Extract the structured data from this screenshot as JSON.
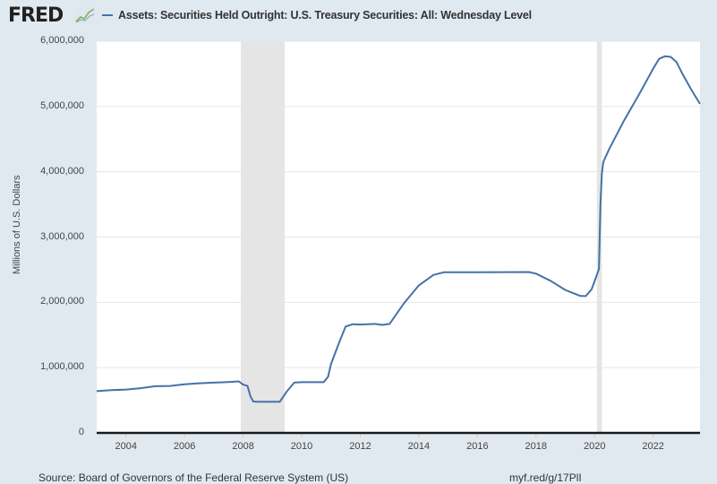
{
  "header": {
    "logo_text": "FRED",
    "logo_icon": "line-chart-icon",
    "legend_label": "Assets: Securities Held Outright: U.S. Treasury Securities: All: Wednesday Level",
    "legend_color": "#4572a7"
  },
  "axes": {
    "ylabel": "Millions of U.S. Dollars",
    "yticks": [
      "0",
      "1,000,000",
      "2,000,000",
      "3,000,000",
      "4,000,000",
      "5,000,000",
      "6,000,000"
    ],
    "xticks": [
      "2004",
      "2006",
      "2008",
      "2010",
      "2012",
      "2014",
      "2016",
      "2018",
      "2020",
      "2022"
    ]
  },
  "footer": {
    "source": "Source: Board of Governors of the Federal Reserve System (US)",
    "link": "myf.red/g/17PlI"
  },
  "colors": {
    "background": "#e1e9f0",
    "plot_bg": "#ffffff",
    "grid": "#e6e6e6",
    "recession": "#e5e5e5",
    "line": "#4572a7",
    "axis": "#1a1a1a"
  },
  "chart_data": {
    "type": "line",
    "title": "Assets: Securities Held Outright: U.S. Treasury Securities: All: Wednesday Level",
    "xlabel": "",
    "ylabel": "Millions of U.S. Dollars",
    "xlim": [
      2003.0,
      2023.6
    ],
    "ylim": [
      0,
      6000000
    ],
    "grid": true,
    "legend_position": "top",
    "recessions": [
      [
        2007.92,
        2009.42
      ],
      [
        2020.08,
        2020.25
      ]
    ],
    "series": [
      {
        "name": "Assets: Securities Held Outright: U.S. Treasury Securities: All: Wednesday Level",
        "x": [
          2003.0,
          2003.5,
          2004.0,
          2004.5,
          2005.0,
          2005.5,
          2006.0,
          2006.5,
          2007.0,
          2007.5,
          2007.85,
          2008.0,
          2008.15,
          2008.25,
          2008.35,
          2008.5,
          2008.75,
          2009.0,
          2009.25,
          2009.5,
          2009.75,
          2010.0,
          2010.5,
          2010.75,
          2010.9,
          2011.0,
          2011.25,
          2011.5,
          2011.75,
          2012.0,
          2012.5,
          2012.75,
          2013.0,
          2013.5,
          2014.0,
          2014.5,
          2014.85,
          2015.0,
          2016.0,
          2017.0,
          2017.75,
          2018.0,
          2018.5,
          2019.0,
          2019.5,
          2019.7,
          2019.9,
          2020.0,
          2020.15,
          2020.2,
          2020.25,
          2020.3,
          2020.5,
          2021.0,
          2021.5,
          2022.0,
          2022.2,
          2022.4,
          2022.6,
          2022.8,
          2023.0,
          2023.3,
          2023.6
        ],
        "values": [
          640000,
          655000,
          665000,
          685000,
          715000,
          720000,
          745000,
          760000,
          770000,
          780000,
          790000,
          740000,
          720000,
          560000,
          480000,
          476000,
          476000,
          476000,
          476000,
          640000,
          770000,
          777000,
          777000,
          777000,
          860000,
          1050000,
          1350000,
          1630000,
          1665000,
          1660000,
          1670000,
          1655000,
          1670000,
          1990000,
          2260000,
          2420000,
          2460000,
          2461000,
          2462000,
          2463000,
          2465000,
          2440000,
          2330000,
          2190000,
          2100000,
          2095000,
          2200000,
          2320000,
          2510000,
          3500000,
          3980000,
          4150000,
          4350000,
          4780000,
          5170000,
          5580000,
          5730000,
          5770000,
          5760000,
          5680000,
          5500000,
          5260000,
          5040000
        ]
      }
    ]
  }
}
